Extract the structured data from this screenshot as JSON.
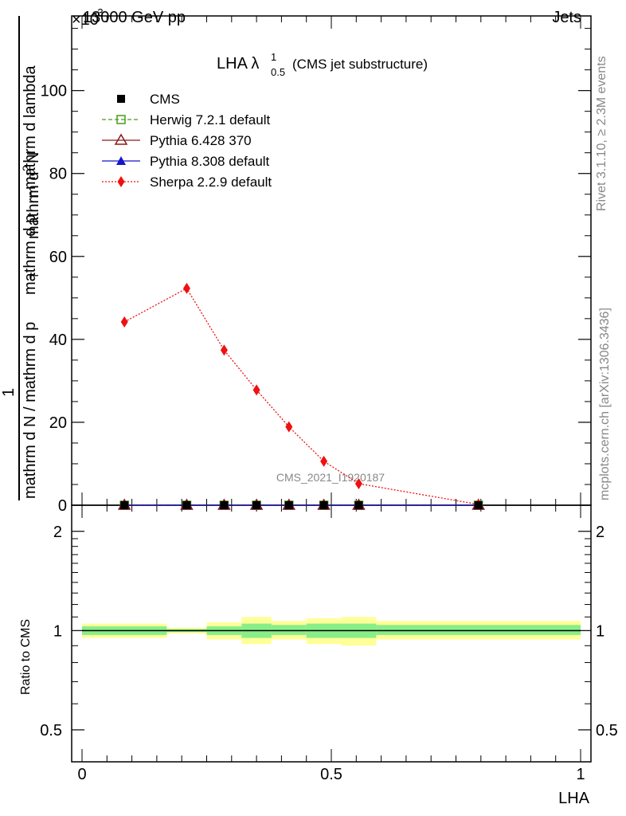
{
  "header": {
    "left": "13000 GeV pp",
    "right": "Jets",
    "exponent": "×10",
    "exponent_power": "-3"
  },
  "side_labels": {
    "rivet": "Rivet 3.1.10, ≥ 2.3M events",
    "mcplots": "mcplots.cern.ch [arXiv:1306.3436]"
  },
  "watermark": "CMS_2021_I1920187",
  "plot_title": {
    "main": "LHA λ",
    "sup": "1",
    "sub": "0.5",
    "suffix": "(CMS jet substructure)"
  },
  "y_label_top": {
    "numerator_1": "1",
    "denominator_1": "mathrm d N / mathrm d p",
    "sub_1": "T",
    "numerator_2": "mathrm d",
    "sup_2": "2",
    "numerator_2b": "N",
    "denominator_2": "mathrm d p",
    "sub_2": "T",
    "denominator_2b": " mathrm d lambda"
  },
  "y_label_ratio": "Ratio to CMS",
  "x_label": "LHA",
  "colors": {
    "herwig": "#4a9a1a",
    "pythia6": "#8b1a1a",
    "pythia8": "#1515cc",
    "sherpa": "#ee1111",
    "band_yellow": "#ffff99",
    "band_green": "#88ee88"
  },
  "chart_data": [
    {
      "type": "line",
      "xlim": [
        -0.02,
        1.02
      ],
      "ylim": [
        0,
        118
      ],
      "y_multiplier": "×10^-3",
      "yticks": [
        0,
        20,
        40,
        60,
        80,
        100
      ],
      "legend_position": "top-left",
      "series": [
        {
          "name": "CMS",
          "x": [
            0.085,
            0.21,
            0.285,
            0.35,
            0.415,
            0.485,
            0.555,
            0.795
          ],
          "values": [
            0,
            0,
            0,
            0,
            0,
            0,
            0,
            0
          ]
        },
        {
          "name": "Herwig 7.2.1 default",
          "x": [
            0.085,
            0.21,
            0.285,
            0.35,
            0.415,
            0.485,
            0.555,
            0.795
          ],
          "values": [
            0,
            0,
            0,
            0,
            0,
            0,
            0,
            0
          ]
        },
        {
          "name": "Pythia 6.428 370",
          "x": [
            0.085,
            0.21,
            0.285,
            0.35,
            0.415,
            0.485,
            0.555,
            0.795
          ],
          "values": [
            0,
            0,
            0,
            0,
            0,
            0,
            0,
            0
          ]
        },
        {
          "name": "Pythia 8.308 default",
          "x": [
            0.085,
            0.21,
            0.285,
            0.35,
            0.415,
            0.485,
            0.555,
            0.795
          ],
          "values": [
            0,
            0,
            0,
            0,
            0,
            0,
            0,
            0
          ]
        },
        {
          "name": "Sherpa 2.2.9 default",
          "x": [
            0.085,
            0.21,
            0.285,
            0.35,
            0.415,
            0.485,
            0.555,
            0.795
          ],
          "values": [
            44.2,
            52.3,
            37.4,
            27.8,
            18.9,
            10.6,
            5.2,
            0.2
          ]
        }
      ]
    },
    {
      "type": "area",
      "xlim": [
        -0.02,
        1.02
      ],
      "ylim": [
        0.4,
        2.4
      ],
      "log_y": true,
      "yticks": [
        0.5,
        1,
        2
      ],
      "xticks": [
        0,
        0.5,
        1
      ],
      "reference_line": 1,
      "bins": [
        {
          "x0": 0.0,
          "x1": 0.17,
          "yellow": [
            0.95,
            1.05
          ],
          "green": [
            0.97,
            1.03
          ]
        },
        {
          "x0": 0.17,
          "x1": 0.25,
          "yellow": [
            0.98,
            1.02
          ],
          "green": [
            0.99,
            1.01
          ]
        },
        {
          "x0": 0.25,
          "x1": 0.32,
          "yellow": [
            0.94,
            1.06
          ],
          "green": [
            0.97,
            1.03
          ]
        },
        {
          "x0": 0.32,
          "x1": 0.38,
          "yellow": [
            0.91,
            1.1
          ],
          "green": [
            0.95,
            1.05
          ]
        },
        {
          "x0": 0.38,
          "x1": 0.45,
          "yellow": [
            0.94,
            1.07
          ],
          "green": [
            0.97,
            1.04
          ]
        },
        {
          "x0": 0.45,
          "x1": 0.52,
          "yellow": [
            0.91,
            1.09
          ],
          "green": [
            0.95,
            1.05
          ]
        },
        {
          "x0": 0.52,
          "x1": 0.59,
          "yellow": [
            0.9,
            1.1
          ],
          "green": [
            0.95,
            1.05
          ]
        },
        {
          "x0": 0.59,
          "x1": 1.0,
          "yellow": [
            0.94,
            1.07
          ],
          "green": [
            0.97,
            1.04
          ]
        }
      ]
    }
  ]
}
